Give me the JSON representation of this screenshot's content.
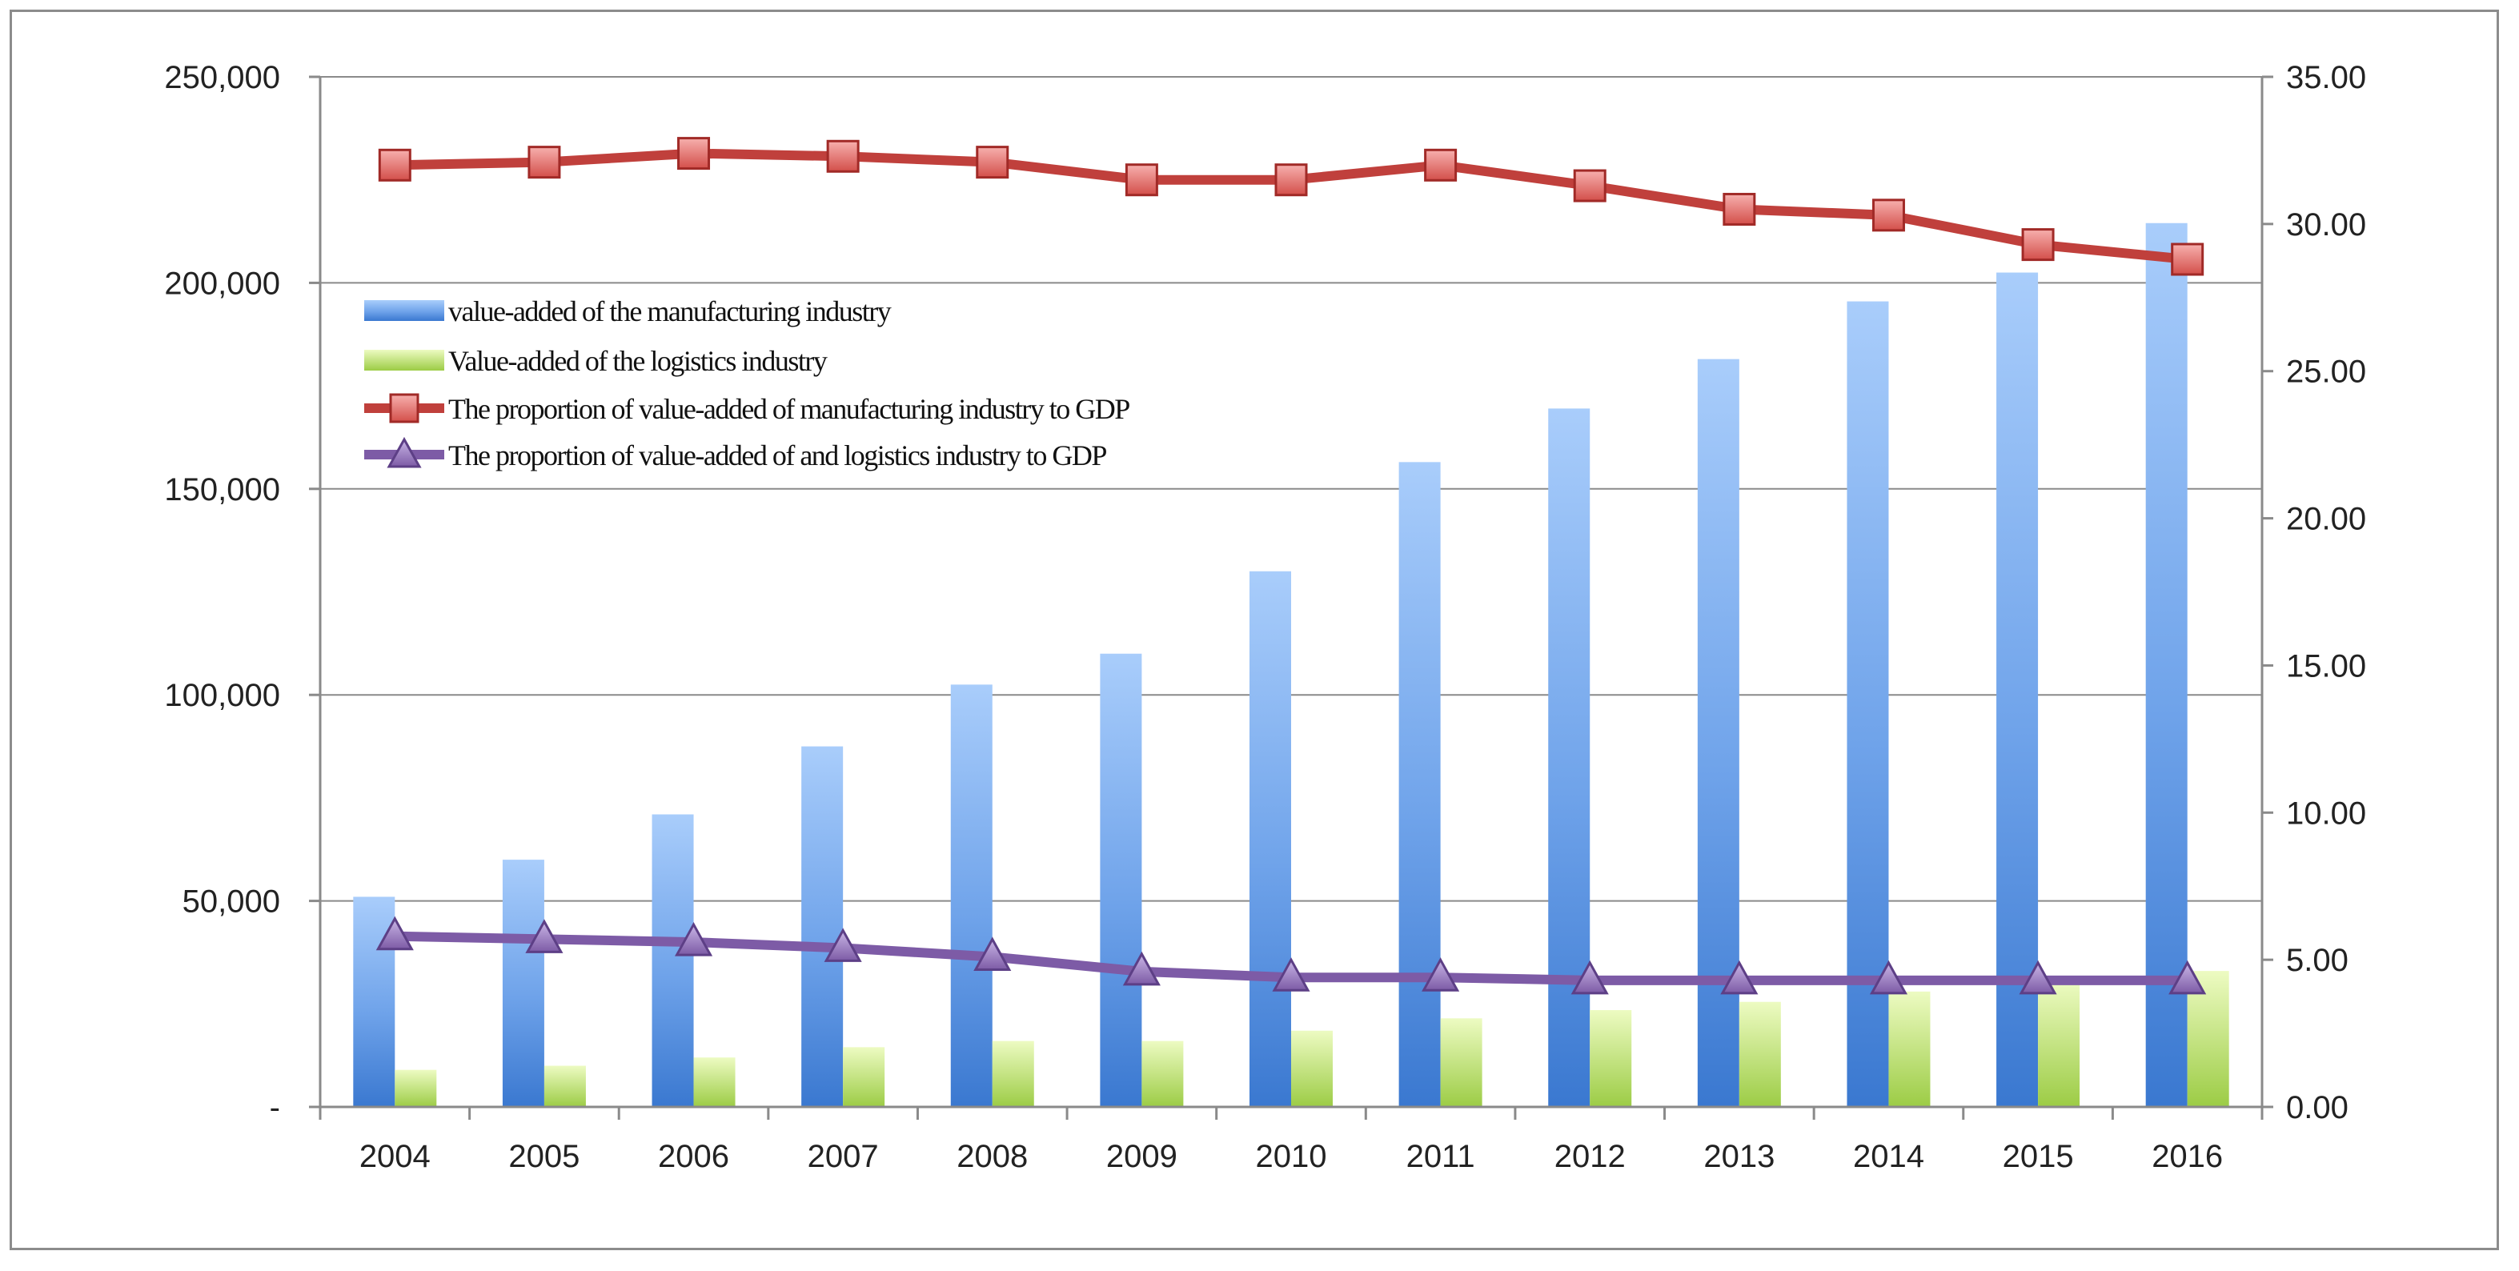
{
  "chart_data": {
    "type": "bar",
    "title": "",
    "xlabel": "",
    "ylabel": "",
    "categories": [
      "2004",
      "2005",
      "2006",
      "2007",
      "2008",
      "2009",
      "2010",
      "2011",
      "2012",
      "2013",
      "2014",
      "2015",
      "2016"
    ],
    "y_left": {
      "ylim": [
        0,
        250000
      ],
      "ticks": [
        0,
        50000,
        100000,
        150000,
        200000,
        250000
      ],
      "tick_labels": [
        "-",
        "50,000",
        "100,000",
        "150,000",
        "200,000",
        "250,000"
      ]
    },
    "y_right": {
      "ylim": [
        0,
        35
      ],
      "ticks": [
        0,
        5,
        10,
        15,
        20,
        25,
        30,
        35
      ],
      "tick_labels": [
        "0.00",
        "5.00",
        "10.00",
        "15.00",
        "20.00",
        "25.00",
        "30.00",
        "35.00"
      ]
    },
    "grid": true,
    "legend_position": "upper-left inside plot",
    "series": [
      {
        "name": "value-added of the manufacturing industry",
        "type": "bar",
        "axis": "left",
        "color": "#4a86d8",
        "values": [
          51000,
          60000,
          71000,
          87500,
          102500,
          110000,
          130000,
          156500,
          169500,
          181500,
          195500,
          202500,
          214500
        ]
      },
      {
        "name": "Value-added of the logistics industry",
        "type": "bar",
        "axis": "left",
        "color": "#a6d55a",
        "values": [
          9000,
          10000,
          12000,
          14500,
          16000,
          16000,
          18500,
          21500,
          23500,
          25500,
          28000,
          30500,
          33000
        ]
      },
      {
        "name": "The proportion of value-added of manufacturing industry to GDP",
        "type": "line",
        "axis": "right",
        "marker": "square",
        "color": "#c0403c",
        "values": [
          32.0,
          32.1,
          32.4,
          32.3,
          32.1,
          31.5,
          31.5,
          32.0,
          31.3,
          30.5,
          30.3,
          29.3,
          28.8
        ]
      },
      {
        "name": "The proportion of value-added of and logistics industry to GDP",
        "type": "line",
        "axis": "right",
        "marker": "triangle",
        "color": "#7d5ba6",
        "values": [
          5.8,
          5.7,
          5.6,
          5.4,
          5.1,
          4.6,
          4.4,
          4.4,
          4.3,
          4.3,
          4.3,
          4.3,
          4.3
        ]
      }
    ]
  },
  "legend": [
    {
      "label": "value-added of the manufacturing industry"
    },
    {
      "label": "Value-added of the logistics industry"
    },
    {
      "label": "The proportion of value-added of manufacturing industry to GDP"
    },
    {
      "label": "The proportion of value-added of and logistics industry to GDP"
    }
  ]
}
